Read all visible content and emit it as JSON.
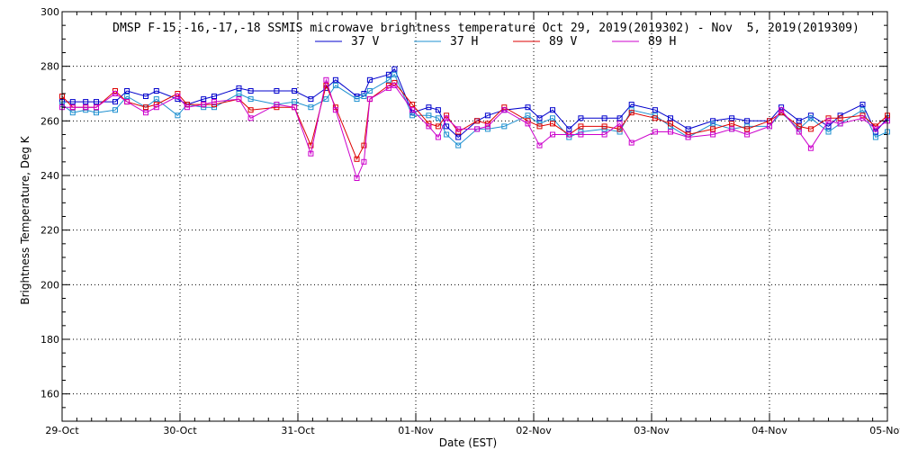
{
  "chart_data": {
    "type": "line",
    "title": "DMSP F-15,-16,-17,-18 SSMIS microwave brightness temperature Oct 29, 2019(2019302) - Nov  5, 2019(2019309)",
    "xlabel": "Date (EST)",
    "ylabel": "Brightness Temperature, Deg K",
    "xlim": [
      0,
      7
    ],
    "ylim": [
      150,
      300
    ],
    "yticks": [
      160,
      180,
      200,
      220,
      240,
      260,
      280,
      300
    ],
    "xticks": [
      0,
      1,
      2,
      3,
      4,
      5,
      6,
      7
    ],
    "xticklabels": [
      "29-Oct",
      "30-Oct",
      "31-Oct",
      "01-Nov",
      "02-Nov",
      "03-Nov",
      "04-Nov",
      "05-Nov"
    ],
    "grid": true,
    "legend_position": "top",
    "x": [
      0.0,
      0.09,
      0.2,
      0.29,
      0.45,
      0.55,
      0.71,
      0.8,
      0.98,
      1.06,
      1.2,
      1.29,
      1.5,
      1.6,
      1.82,
      1.97,
      2.11,
      2.24,
      2.32,
      2.5,
      2.56,
      2.61,
      2.77,
      2.82,
      2.97,
      3.11,
      3.19,
      3.26,
      3.36,
      3.52,
      3.61,
      3.75,
      3.95,
      4.05,
      4.16,
      4.3,
      4.4,
      4.6,
      4.73,
      4.83,
      5.03,
      5.16,
      5.31,
      5.52,
      5.68,
      5.81,
      6.0,
      6.1,
      6.25,
      6.35,
      6.5,
      6.6,
      6.79,
      6.9,
      7.0
    ],
    "series": [
      {
        "name": "37 V",
        "color": "#0000cc",
        "values": [
          267,
          267,
          267,
          267,
          267,
          271,
          269,
          271,
          268,
          266,
          268,
          269,
          272,
          271,
          271,
          271,
          268,
          272,
          275,
          269,
          270,
          275,
          277,
          279,
          263,
          265,
          264,
          258,
          254,
          260,
          262,
          264,
          265,
          261,
          264,
          257,
          261,
          261,
          261,
          266,
          264,
          261,
          257,
          260,
          261,
          260,
          260,
          265,
          260,
          262,
          258,
          262,
          266,
          256,
          261
        ]
      },
      {
        "name": "37 H",
        "color": "#1e90d0",
        "values": [
          266,
          263,
          264,
          263,
          264,
          269,
          265,
          268,
          262,
          266,
          265,
          265,
          270,
          268,
          266,
          267,
          265,
          268,
          273,
          268,
          269,
          271,
          275,
          277,
          262,
          262,
          261,
          255,
          251,
          257,
          257,
          258,
          262,
          259,
          261,
          254,
          256,
          257,
          256,
          264,
          262,
          258,
          254,
          259,
          257,
          258,
          258,
          263,
          257,
          261,
          256,
          259,
          264,
          254,
          256
        ]
      },
      {
        "name": "89 V",
        "color": "#dd0000",
        "values": [
          269,
          265,
          265,
          265,
          271,
          267,
          265,
          266,
          270,
          266,
          266,
          266,
          268,
          264,
          265,
          265,
          251,
          273,
          265,
          246,
          251,
          268,
          273,
          274,
          266,
          259,
          258,
          262,
          256,
          260,
          259,
          265,
          260,
          258,
          259,
          255,
          258,
          258,
          257,
          263,
          261,
          259,
          255,
          257,
          259,
          257,
          260,
          263,
          258,
          257,
          261,
          261,
          262,
          258,
          262
        ]
      },
      {
        "name": "89 H",
        "color": "#cc00cc",
        "values": [
          265,
          265,
          265,
          265,
          270,
          267,
          263,
          265,
          269,
          265,
          266,
          267,
          268,
          261,
          266,
          265,
          248,
          275,
          264,
          239,
          245,
          268,
          272,
          273,
          264,
          258,
          254,
          261,
          257,
          257,
          258,
          264,
          259,
          251,
          255,
          255,
          255,
          255,
          259,
          252,
          256,
          256,
          254,
          255,
          257,
          255,
          258,
          264,
          256,
          250,
          260,
          259,
          261,
          257,
          260
        ]
      }
    ]
  }
}
